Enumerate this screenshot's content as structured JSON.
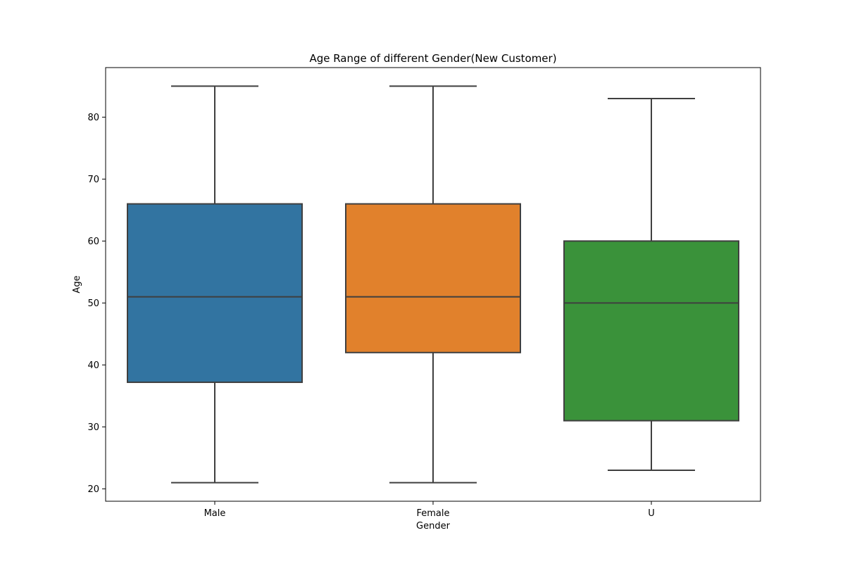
{
  "chart_data": {
    "type": "box",
    "title": "Age Range of different Gender(New Customer)",
    "xlabel": "Gender",
    "ylabel": "Age",
    "ylim": [
      18,
      88
    ],
    "yticks": [
      20,
      30,
      40,
      50,
      60,
      70,
      80
    ],
    "grid": false,
    "categories": [
      "Male",
      "Female",
      "U"
    ],
    "boxes": [
      {
        "category": "Male",
        "min": 21,
        "q1": 37.2,
        "median": 51,
        "q3": 66,
        "max": 85,
        "color": "#3274a1"
      },
      {
        "category": "Female",
        "min": 21,
        "q1": 42,
        "median": 51,
        "q3": 66,
        "max": 85,
        "color": "#e1812c"
      },
      {
        "category": "U",
        "min": 23,
        "q1": 31,
        "median": 50,
        "q3": 60,
        "max": 83,
        "color": "#3a923a"
      }
    ],
    "line_color": "#3f3f3f"
  }
}
